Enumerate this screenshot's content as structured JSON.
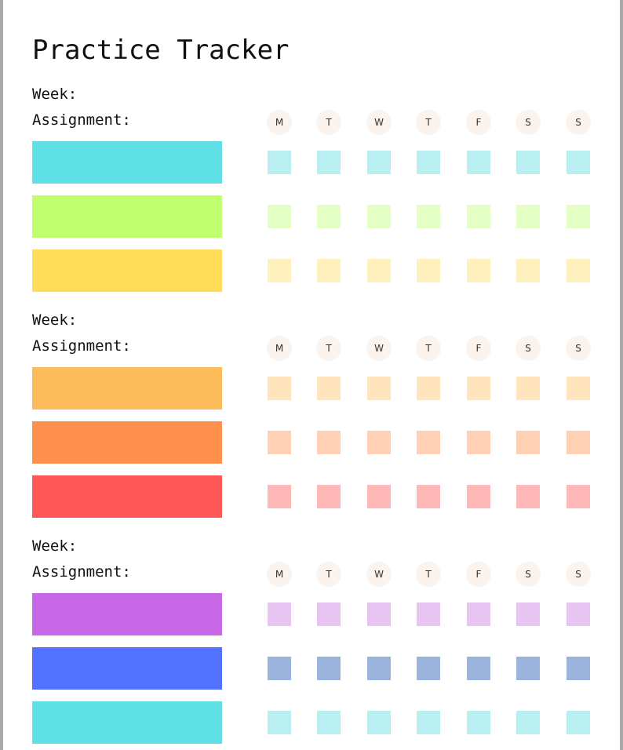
{
  "title": "Practice Tracker",
  "days": [
    "M",
    "T",
    "W",
    "T",
    "F",
    "S",
    "S"
  ],
  "blocks": [
    {
      "week_label": "Week:",
      "assignment_label": "Assignment:",
      "rows": [
        {
          "bar_color": "#5ee0e5",
          "box_color": "#b9eff1"
        },
        {
          "bar_color": "#c2ff6e",
          "box_color": "#e3ffc6"
        },
        {
          "bar_color": "#ffdc59",
          "box_color": "#fff1be"
        }
      ]
    },
    {
      "week_label": "Week:",
      "assignment_label": "Assignment:",
      "rows": [
        {
          "bar_color": "#fdbc5c",
          "box_color": "#ffe4bd"
        },
        {
          "bar_color": "#fe8f4d",
          "box_color": "#ffd0b4"
        },
        {
          "bar_color": "#fe5858",
          "box_color": "#ffb8b8"
        }
      ]
    },
    {
      "week_label": "Week:",
      "assignment_label": "Assignment:",
      "rows": [
        {
          "bar_color": "#c968e6",
          "box_color": "#e8c4f2"
        },
        {
          "bar_color": "#5271ff",
          "box_color": "#9ab4dc"
        },
        {
          "bar_color": "#5ee0e5",
          "box_color": "#b9eff1"
        }
      ]
    }
  ]
}
